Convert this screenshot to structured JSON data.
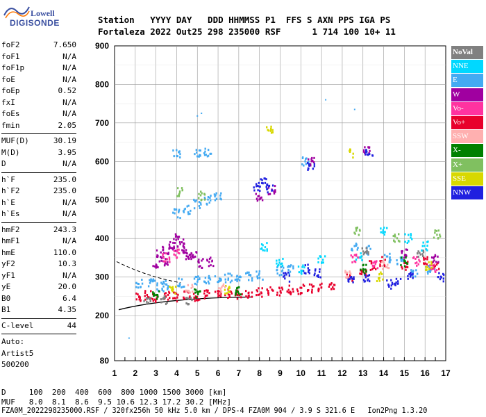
{
  "logo": {
    "brand_top": "Lowell",
    "brand_bottom": "DIGISONDE"
  },
  "header": {
    "line1": "Station   YYYY DAY   DDD HHMMSS P1  FFS S AXN PPS IGA PS",
    "line2": "Fortaleza 2022 Out25 298 235000 RSF      1 714 100 10+ 11"
  },
  "params": {
    "group1": [
      {
        "name": "foF2",
        "value": "7.650"
      },
      {
        "name": "foF1",
        "value": "N/A"
      },
      {
        "name": "foF1p",
        "value": "N/A"
      },
      {
        "name": "foE",
        "value": "N/A"
      },
      {
        "name": "foEp",
        "value": "0.52"
      },
      {
        "name": "fxI",
        "value": "N/A"
      },
      {
        "name": "foEs",
        "value": "N/A"
      },
      {
        "name": "fmin",
        "value": "2.05"
      }
    ],
    "group2": [
      {
        "name": "MUF(D)",
        "value": "30.19"
      },
      {
        "name": "M(D)",
        "value": "3.95"
      },
      {
        "name": "D",
        "value": "N/A"
      }
    ],
    "group3": [
      {
        "name": "h`F",
        "value": "235.0"
      },
      {
        "name": "h`F2",
        "value": "235.0"
      },
      {
        "name": "h`E",
        "value": "N/A"
      },
      {
        "name": "h`Es",
        "value": "N/A"
      }
    ],
    "group4": [
      {
        "name": "hmF2",
        "value": "243.3"
      },
      {
        "name": "hmF1",
        "value": "N/A"
      },
      {
        "name": "hmE",
        "value": "110.0"
      },
      {
        "name": "yF2",
        "value": "10.3"
      },
      {
        "name": "yF1",
        "value": "N/A"
      },
      {
        "name": "yE",
        "value": "20.0"
      },
      {
        "name": "B0",
        "value": "6.4"
      },
      {
        "name": "B1",
        "value": "4.35"
      }
    ],
    "group5": [
      {
        "name": "C-level",
        "value": "44"
      }
    ]
  },
  "auto": {
    "line1": "Auto:",
    "line2": "Artist5",
    "line3": "500200"
  },
  "legend": [
    {
      "label": "NoVal",
      "color": "#808080",
      "bold": true
    },
    {
      "label": "NNE",
      "color": "#00d8ff"
    },
    {
      "label": "E",
      "color": "#44aaf2"
    },
    {
      "label": "W",
      "color": "#a000a0"
    },
    {
      "label": "Vo-",
      "color": "#ff33a0"
    },
    {
      "label": "Vo+",
      "color": "#e8002c"
    },
    {
      "label": "SSW",
      "color": "#ffb0b0"
    },
    {
      "label": "X-",
      "color": "#008000"
    },
    {
      "label": "X+",
      "color": "#80c060"
    },
    {
      "label": "SSE",
      "color": "#d8d800"
    },
    {
      "label": "NNW",
      "color": "#2020e0"
    }
  ],
  "chart_data": {
    "type": "scatter",
    "xlim": [
      1,
      17
    ],
    "ylim": [
      80,
      900
    ],
    "x_ticks": [
      "1",
      "2",
      "3",
      "4",
      "5",
      "6",
      "7",
      "8",
      "9",
      "10",
      "11",
      "12",
      "13",
      "14",
      "15",
      "16",
      "17"
    ],
    "y_ticks": [
      "80",
      "200",
      "300",
      "400",
      "500",
      "600",
      "700",
      "800",
      "900"
    ],
    "y_tick_values": [
      80,
      200,
      300,
      400,
      500,
      600,
      700,
      800,
      900
    ],
    "grid": true,
    "series": [
      {
        "name": "Vo+",
        "color": "#e8002c",
        "points": [
          [
            2.2,
            248
          ],
          [
            2.6,
            252
          ],
          [
            3.0,
            245
          ],
          [
            3.5,
            250
          ],
          [
            4.0,
            248
          ],
          [
            4.5,
            255
          ],
          [
            5.0,
            250
          ],
          [
            5.5,
            255
          ],
          [
            6.0,
            252
          ],
          [
            6.5,
            256
          ],
          [
            7.0,
            255
          ],
          [
            7.5,
            258
          ],
          [
            8.0,
            260
          ],
          [
            8.5,
            262
          ],
          [
            9.0,
            262
          ],
          [
            9.5,
            266
          ],
          [
            10.0,
            268
          ],
          [
            10.5,
            270
          ],
          [
            11.0,
            272
          ],
          [
            11.5,
            275
          ],
          [
            12.4,
            300
          ],
          [
            13.0,
            310
          ],
          [
            13.5,
            330
          ],
          [
            14.0,
            340
          ],
          [
            15.0,
            330
          ],
          [
            16.0,
            340
          ],
          [
            16.5,
            330
          ]
        ]
      },
      {
        "name": "E",
        "color": "#44aaf2",
        "points": [
          [
            2.2,
            282
          ],
          [
            2.8,
            285
          ],
          [
            3.2,
            275
          ],
          [
            3.5,
            280
          ],
          [
            4.2,
            285
          ],
          [
            5.0,
            290
          ],
          [
            5.5,
            292
          ],
          [
            6.0,
            295
          ],
          [
            6.5,
            298
          ],
          [
            7.0,
            300
          ],
          [
            7.5,
            300
          ],
          [
            8.0,
            305
          ],
          [
            9.0,
            315
          ],
          [
            9.5,
            320
          ],
          [
            4.0,
            465
          ],
          [
            4.5,
            475
          ],
          [
            5.0,
            490
          ],
          [
            5.5,
            500
          ],
          [
            6.0,
            510
          ],
          [
            4.0,
            620
          ],
          [
            5.0,
            622
          ],
          [
            5.5,
            625
          ],
          [
            10.2,
            600
          ],
          [
            12.6,
            380
          ],
          [
            13.2,
            370
          ],
          [
            14.2,
            350
          ],
          [
            14.8,
            340
          ],
          [
            15.5,
            310
          ],
          [
            16.3,
            320
          ]
        ]
      },
      {
        "name": "W",
        "color": "#a000a0",
        "points": [
          [
            3.2,
            360
          ],
          [
            3.5,
            370
          ],
          [
            3.8,
            380
          ],
          [
            4.0,
            400
          ],
          [
            4.2,
            390
          ],
          [
            4.4,
            370
          ],
          [
            4.6,
            350
          ],
          [
            4.8,
            360
          ],
          [
            3.0,
            330
          ],
          [
            3.4,
            340
          ],
          [
            5.2,
            335
          ],
          [
            5.6,
            340
          ],
          [
            8.0,
            510
          ],
          [
            8.6,
            525
          ],
          [
            10.5,
            600
          ],
          [
            13.2,
            630
          ],
          [
            15.0,
            360
          ],
          [
            16.5,
            350
          ]
        ]
      },
      {
        "name": "NNW",
        "color": "#2020e0",
        "points": [
          [
            7.9,
            535
          ],
          [
            8.2,
            545
          ],
          [
            8.5,
            530
          ],
          [
            9.3,
            300
          ],
          [
            10.3,
            320
          ],
          [
            10.8,
            310
          ],
          [
            12.4,
            290
          ],
          [
            13.2,
            300
          ],
          [
            14.3,
            280
          ],
          [
            14.7,
            290
          ],
          [
            15.3,
            300
          ],
          [
            16.8,
            300
          ],
          [
            10.5,
            590
          ],
          [
            13.3,
            620
          ]
        ]
      },
      {
        "name": "NNE",
        "color": "#00d8ff",
        "points": [
          [
            8.2,
            380
          ],
          [
            9.0,
            340
          ],
          [
            10.0,
            320
          ],
          [
            11.0,
            345
          ],
          [
            12.8,
            350
          ],
          [
            14.0,
            420
          ],
          [
            15.2,
            400
          ],
          [
            16.0,
            380
          ]
        ]
      },
      {
        "name": "Vo-",
        "color": "#ff33a0",
        "points": [
          [
            3.5,
            350
          ],
          [
            4.0,
            360
          ],
          [
            12.6,
            350
          ],
          [
            13.6,
            330
          ],
          [
            15.6,
            340
          ],
          [
            16.4,
            320
          ]
        ]
      },
      {
        "name": "X-",
        "color": "#008000",
        "points": [
          [
            3.0,
            255
          ],
          [
            5.0,
            258
          ],
          [
            7.0,
            262
          ],
          [
            13.0,
            320
          ],
          [
            15.0,
            340
          ]
        ]
      },
      {
        "name": "X+",
        "color": "#80c060",
        "points": [
          [
            4.2,
            520
          ],
          [
            5.2,
            510
          ],
          [
            12.7,
            420
          ],
          [
            14.6,
            400
          ],
          [
            16.6,
            410
          ]
        ]
      },
      {
        "name": "SSE",
        "color": "#d8d800",
        "points": [
          [
            3.8,
            265
          ],
          [
            6.5,
            268
          ],
          [
            8.5,
            680
          ],
          [
            12.5,
            620
          ],
          [
            13.8,
            300
          ],
          [
            16.2,
            330
          ]
        ]
      },
      {
        "name": "SSW",
        "color": "#ffb0b0",
        "points": [
          [
            4.6,
            268
          ],
          [
            6.2,
            270
          ],
          [
            12.3,
            310
          ],
          [
            14.1,
            330
          ]
        ]
      },
      {
        "name": "NoVal",
        "color": "#808080",
        "points": [
          [
            2.6,
            236
          ],
          [
            3.4,
            238
          ],
          [
            4.6,
            240
          ],
          [
            13.1,
            370
          ],
          [
            15.8,
            360
          ]
        ]
      }
    ],
    "isolated_points": [
      [
        1.7,
        140
      ],
      [
        5.0,
        718
      ],
      [
        11.2,
        760
      ],
      [
        12.6,
        735
      ],
      [
        5.2,
        725
      ]
    ]
  },
  "footer": {
    "line1": "D     100  200  400  600  800 1000 1500 3000 [km]",
    "line2": "MUF   8.0  8.1  8.6  9.5 10.6 12.3 17.2 30.2 [MHz]",
    "line3": "FZA0M_2022298235000.RSF / 320fx256h 50 kHz 5.0 km / DPS-4 FZA0M 904 / 3.9 S 321.6 E   Ion2Png 1.3.20"
  }
}
